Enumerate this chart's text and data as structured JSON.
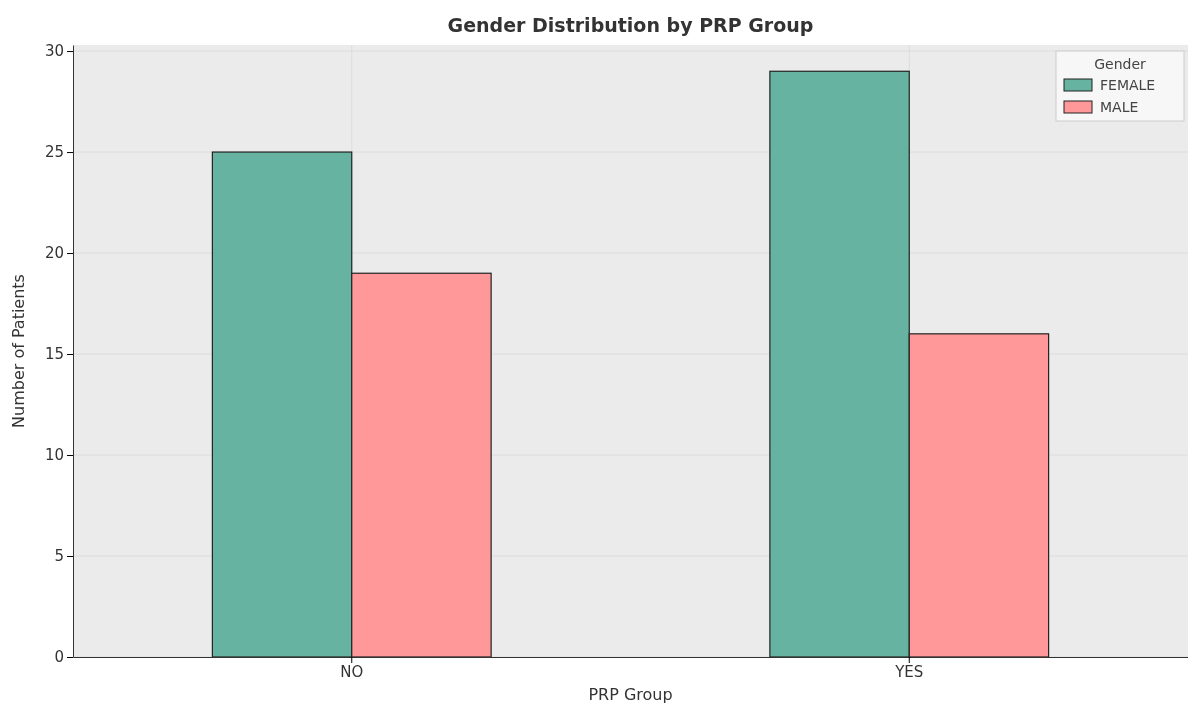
{
  "chart_data": {
    "type": "bar",
    "title": "Gender Distribution by PRP Group",
    "xlabel": "PRP Group",
    "ylabel": "Number of Patients",
    "legend_title": "Gender",
    "categories": [
      "NO",
      "YES"
    ],
    "series": [
      {
        "name": "FEMALE",
        "color": "#66b3a1",
        "values": [
          25,
          29
        ]
      },
      {
        "name": "MALE",
        "color": "#ff9999",
        "values": [
          19,
          16
        ]
      }
    ],
    "ylim": [
      0,
      30.3
    ],
    "yticks": [
      0,
      5,
      10,
      15,
      20,
      25,
      30
    ],
    "grid": true,
    "legend": "top right"
  }
}
